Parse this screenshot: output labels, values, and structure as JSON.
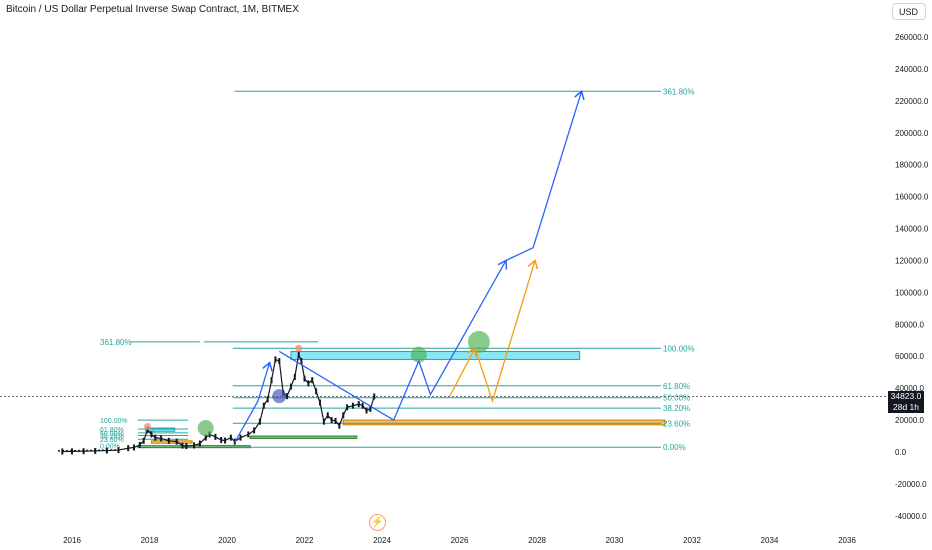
{
  "header": {
    "title": "Bitcoin / US Dollar Perpetual Inverse Swap Contract, 1M, BITMEX",
    "currency": "USD"
  },
  "price_tag": {
    "price": "34823.0",
    "countdown": "28d 1h"
  },
  "colors": {
    "fib": "#26a69a",
    "blue_arrow": "#2962ff",
    "orange_arrow": "#f59d0e",
    "cyan_zone": "#5fe0f0",
    "orange_zone": "#f9a825",
    "green_zone": "#4caf50",
    "green_circle": "#4caf50",
    "blue_circle": "#3f51b5",
    "candle": "#131722"
  },
  "chart_data": {
    "type": "line",
    "y_axis": {
      "range": [
        -40000,
        260000
      ],
      "ticks": [
        260000,
        240000,
        220000,
        200000,
        180000,
        160000,
        140000,
        120000,
        100000,
        80000,
        60000,
        40000,
        20000,
        0,
        -20000,
        -40000
      ],
      "tick_labels": [
        "260000.0",
        "240000.0",
        "220000.0",
        "200000.0",
        "180000.0",
        "160000.0",
        "140000.0",
        "120000.0",
        "100000.0",
        "80000.0",
        "60000.0",
        "40000.0",
        "20000.0",
        "0.0",
        "-20000.0",
        "-40000.0"
      ]
    },
    "x_axis": {
      "range": [
        2015.5,
        2037
      ],
      "ticks": [
        2016,
        2018,
        2020,
        2022,
        2024,
        2026,
        2028,
        2030,
        2032,
        2034,
        2036
      ],
      "tick_labels": [
        "2016",
        "2018",
        "2020",
        "2022",
        "2024",
        "2026",
        "2028",
        "2030",
        "2032",
        "2034",
        "2036"
      ]
    },
    "price_series": [
      [
        2015.75,
        300
      ],
      [
        2016.0,
        400
      ],
      [
        2016.3,
        500
      ],
      [
        2016.6,
        650
      ],
      [
        2016.9,
        900
      ],
      [
        2017.2,
        1200
      ],
      [
        2017.45,
        2400
      ],
      [
        2017.6,
        2800
      ],
      [
        2017.75,
        4500
      ],
      [
        2017.85,
        7000
      ],
      [
        2017.95,
        14000
      ],
      [
        2018.05,
        11000
      ],
      [
        2018.15,
        9000
      ],
      [
        2018.3,
        8500
      ],
      [
        2018.5,
        7000
      ],
      [
        2018.7,
        6500
      ],
      [
        2018.85,
        4000
      ],
      [
        2018.95,
        3700
      ],
      [
        2019.15,
        4100
      ],
      [
        2019.3,
        5300
      ],
      [
        2019.45,
        9000
      ],
      [
        2019.55,
        11000
      ],
      [
        2019.7,
        9500
      ],
      [
        2019.85,
        7500
      ],
      [
        2019.95,
        7200
      ],
      [
        2020.1,
        9000
      ],
      [
        2020.2,
        6500
      ],
      [
        2020.35,
        9000
      ],
      [
        2020.55,
        11000
      ],
      [
        2020.7,
        13500
      ],
      [
        2020.85,
        19000
      ],
      [
        2020.95,
        29000
      ],
      [
        2021.05,
        33000
      ],
      [
        2021.15,
        45000
      ],
      [
        2021.25,
        58000
      ],
      [
        2021.35,
        57000
      ],
      [
        2021.45,
        37000
      ],
      [
        2021.55,
        35000
      ],
      [
        2021.65,
        41000
      ],
      [
        2021.75,
        47000
      ],
      [
        2021.85,
        61000
      ],
      [
        2021.92,
        57000
      ],
      [
        2022.0,
        46000
      ],
      [
        2022.1,
        43000
      ],
      [
        2022.2,
        45000
      ],
      [
        2022.3,
        38000
      ],
      [
        2022.4,
        31000
      ],
      [
        2022.5,
        19000
      ],
      [
        2022.6,
        23000
      ],
      [
        2022.7,
        20000
      ],
      [
        2022.8,
        19500
      ],
      [
        2022.9,
        16500
      ],
      [
        2023.0,
        23000
      ],
      [
        2023.1,
        28000
      ],
      [
        2023.25,
        29000
      ],
      [
        2023.4,
        30000
      ],
      [
        2023.5,
        29000
      ],
      [
        2023.6,
        26000
      ],
      [
        2023.7,
        27000
      ],
      [
        2023.8,
        34800
      ]
    ],
    "current_price": 34823.0,
    "fib_left": [
      {
        "label": "100.00%",
        "value": 20000
      },
      {
        "label": "61.80%",
        "value": 14400
      },
      {
        "label": "50.00%",
        "value": 12000
      },
      {
        "label": "38.20%",
        "value": 10300
      },
      {
        "label": "23.60%",
        "value": 8000
      },
      {
        "label": "0.00%",
        "value": 4000
      }
    ],
    "fib_right": [
      {
        "label": "361.80%",
        "value": 226000
      },
      {
        "label": "100.00%",
        "value": 65000
      },
      {
        "label": "61.80%",
        "value": 41500
      },
      {
        "label": "50.00%",
        "value": 34000
      },
      {
        "label": "38.20%",
        "value": 27500
      },
      {
        "label": "23.60%",
        "value": 18000
      },
      {
        "label": "0.00%",
        "value": 3000
      }
    ],
    "left_extension": {
      "label": "361.80%",
      "value": 69000
    },
    "blue_path": [
      [
        2020.2,
        6000
      ],
      [
        2020.8,
        32000
      ],
      [
        2021.1,
        56000
      ],
      [
        2021.35,
        63000
      ],
      [
        2024.3,
        20000
      ],
      [
        2024.95,
        57000
      ],
      [
        2025.25,
        36000
      ],
      [
        2027.2,
        120000
      ],
      [
        2027.9,
        128000
      ],
      [
        2029.15,
        226000
      ]
    ],
    "orange_path": [
      [
        2025.75,
        35000
      ],
      [
        2026.4,
        65000
      ],
      [
        2026.85,
        32000
      ],
      [
        2027.95,
        120000
      ]
    ],
    "zones": [
      {
        "name": "cyan",
        "x": [
          2021.65,
          2029.1
        ],
        "y": [
          58000,
          63000
        ]
      },
      {
        "name": "cyan-small",
        "x": [
          2017.9,
          2018.65
        ],
        "y": [
          13000,
          15000
        ]
      },
      {
        "name": "orange",
        "x": [
          2023.0,
          2031.3
        ],
        "y": [
          17000,
          20000
        ]
      },
      {
        "name": "orange-small",
        "x": [
          2018.05,
          2019.1
        ],
        "y": [
          5500,
          7000
        ]
      },
      {
        "name": "green",
        "x": [
          2020.6,
          2023.35
        ],
        "y": [
          8500,
          10000
        ]
      },
      {
        "name": "green-small",
        "x": [
          2017.7,
          2020.6
        ],
        "y": [
          2700,
          4000
        ]
      }
    ],
    "circles": [
      {
        "color": "green",
        "x": 2024.95,
        "y": 61000
      },
      {
        "color": "green",
        "x": 2026.5,
        "y": 69000
      },
      {
        "color": "green",
        "x": 2019.45,
        "y": 15000
      },
      {
        "color": "blue",
        "x": 2021.35,
        "y": 35000
      }
    ]
  }
}
